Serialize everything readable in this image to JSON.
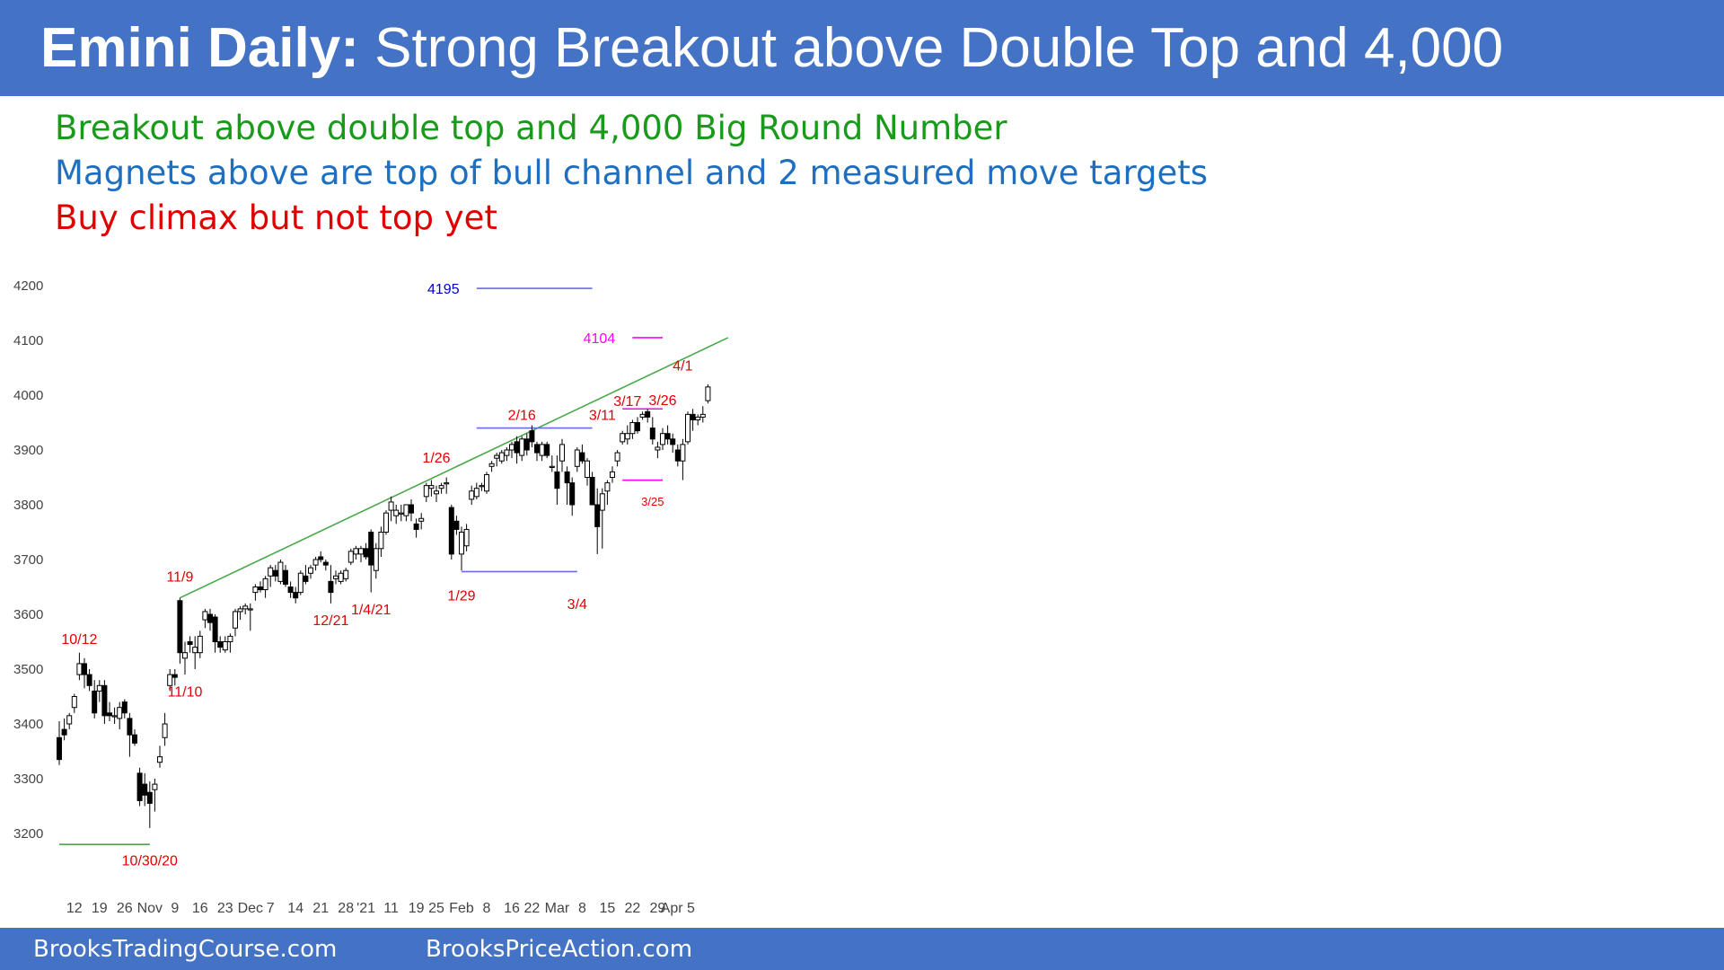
{
  "header": {
    "title_bold": "Emini Daily:",
    "title_rest": "Strong Breakout above Double Top and 4,000"
  },
  "notes": [
    {
      "text": "Breakout above double top and 4,000 Big Round Number",
      "color": "#1a9a1a"
    },
    {
      "text": "Magnets above are top of bull channel and 2 measured move targets",
      "color": "#1f6fc0"
    },
    {
      "text": "Buy climax but not top yet",
      "color": "#e00000"
    }
  ],
  "footer": {
    "link1": "BrooksTradingCourse.com",
    "link2": "BrooksPriceAction.com"
  },
  "colors": {
    "brand": "#4472c4",
    "trendline": "#4aa84a",
    "level_blue": "#6a6ae8",
    "magenta": "#ff00ff",
    "label_red": "#e00000",
    "label_blue": "#0000cc"
  },
  "chart_data": {
    "type": "candlestick",
    "title": "",
    "xlabel": "",
    "ylabel": "",
    "ylim": [
      3150,
      4250
    ],
    "y_ticks": [
      3200,
      3300,
      3400,
      3500,
      3600,
      3700,
      3800,
      3900,
      4000,
      4100,
      4200
    ],
    "x_ticks": [
      {
        "label": "12",
        "bar": 3
      },
      {
        "label": "19",
        "bar": 8
      },
      {
        "label": "26",
        "bar": 13
      },
      {
        "label": "Nov",
        "bar": 18
      },
      {
        "label": "9",
        "bar": 23
      },
      {
        "label": "16",
        "bar": 28
      },
      {
        "label": "23",
        "bar": 33
      },
      {
        "label": "Dec",
        "bar": 38
      },
      {
        "label": "7",
        "bar": 42
      },
      {
        "label": "14",
        "bar": 47
      },
      {
        "label": "21",
        "bar": 52
      },
      {
        "label": "28",
        "bar": 57
      },
      {
        "label": "'21",
        "bar": 61
      },
      {
        "label": "11",
        "bar": 66
      },
      {
        "label": "19",
        "bar": 71
      },
      {
        "label": "25",
        "bar": 75
      },
      {
        "label": "Feb",
        "bar": 80
      },
      {
        "label": "8",
        "bar": 85
      },
      {
        "label": "16",
        "bar": 90
      },
      {
        "label": "22",
        "bar": 94
      },
      {
        "label": "Mar",
        "bar": 99
      },
      {
        "label": "8",
        "bar": 104
      },
      {
        "label": "15",
        "bar": 109
      },
      {
        "label": "22",
        "bar": 114
      },
      {
        "label": "29",
        "bar": 119
      },
      {
        "label": "Apr 5",
        "bar": 123
      }
    ],
    "candles": [
      [
        3375,
        3405,
        3325,
        3335
      ],
      [
        3390,
        3410,
        3370,
        3380
      ],
      [
        3400,
        3420,
        3390,
        3415
      ],
      [
        3430,
        3455,
        3420,
        3450
      ],
      [
        3490,
        3530,
        3480,
        3510
      ],
      [
        3510,
        3520,
        3465,
        3490
      ],
      [
        3490,
        3500,
        3460,
        3470
      ],
      [
        3460,
        3480,
        3410,
        3420
      ],
      [
        3460,
        3480,
        3440,
        3470
      ],
      [
        3470,
        3480,
        3400,
        3415
      ],
      [
        3420,
        3440,
        3405,
        3415
      ],
      [
        3415,
        3430,
        3400,
        3415
      ],
      [
        3410,
        3440,
        3390,
        3430
      ],
      [
        3440,
        3445,
        3410,
        3420
      ],
      [
        3410,
        3420,
        3340,
        3380
      ],
      [
        3380,
        3390,
        3360,
        3365
      ],
      [
        3310,
        3320,
        3250,
        3260
      ],
      [
        3290,
        3310,
        3250,
        3270
      ],
      [
        3275,
        3295,
        3210,
        3255
      ],
      [
        3280,
        3300,
        3240,
        3290
      ],
      [
        3330,
        3360,
        3320,
        3340
      ],
      [
        3375,
        3420,
        3360,
        3400
      ],
      [
        3470,
        3500,
        3460,
        3490
      ],
      [
        3490,
        3500,
        3470,
        3485
      ],
      [
        3625,
        3630,
        3510,
        3530
      ],
      [
        3520,
        3550,
        3490,
        3530
      ],
      [
        3550,
        3560,
        3530,
        3545
      ],
      [
        3530,
        3560,
        3500,
        3540
      ],
      [
        3530,
        3570,
        3520,
        3560
      ],
      [
        3590,
        3610,
        3575,
        3605
      ],
      [
        3600,
        3610,
        3570,
        3585
      ],
      [
        3595,
        3600,
        3530,
        3550
      ],
      [
        3550,
        3560,
        3530,
        3540
      ],
      [
        3535,
        3560,
        3530,
        3550
      ],
      [
        3550,
        3565,
        3530,
        3560
      ],
      [
        3575,
        3610,
        3560,
        3605
      ],
      [
        3605,
        3615,
        3590,
        3610
      ],
      [
        3610,
        3620,
        3600,
        3615
      ],
      [
        3610,
        3620,
        3570,
        3610
      ],
      [
        3640,
        3655,
        3625,
        3650
      ],
      [
        3650,
        3660,
        3640,
        3645
      ],
      [
        3645,
        3670,
        3630,
        3665
      ],
      [
        3670,
        3690,
        3650,
        3685
      ],
      [
        3680,
        3690,
        3660,
        3670
      ],
      [
        3660,
        3700,
        3655,
        3695
      ],
      [
        3680,
        3690,
        3650,
        3655
      ],
      [
        3650,
        3660,
        3630,
        3640
      ],
      [
        3640,
        3650,
        3620,
        3630
      ],
      [
        3640,
        3680,
        3635,
        3675
      ],
      [
        3670,
        3690,
        3655,
        3660
      ],
      [
        3675,
        3690,
        3665,
        3685
      ],
      [
        3690,
        3705,
        3680,
        3700
      ],
      [
        3705,
        3715,
        3695,
        3700
      ],
      [
        3695,
        3700,
        3680,
        3690
      ],
      [
        3660,
        3690,
        3620,
        3640
      ],
      [
        3665,
        3680,
        3655,
        3670
      ],
      [
        3660,
        3680,
        3655,
        3675
      ],
      [
        3665,
        3685,
        3660,
        3680
      ],
      [
        3695,
        3720,
        3690,
        3715
      ],
      [
        3710,
        3725,
        3700,
        3720
      ],
      [
        3710,
        3725,
        3695,
        3720
      ],
      [
        3720,
        3730,
        3700,
        3705
      ],
      [
        3750,
        3755,
        3640,
        3690
      ],
      [
        3680,
        3730,
        3665,
        3720
      ],
      [
        3720,
        3760,
        3705,
        3750
      ],
      [
        3750,
        3790,
        3745,
        3785
      ],
      [
        3790,
        3815,
        3770,
        3805
      ],
      [
        3780,
        3800,
        3765,
        3790
      ],
      [
        3785,
        3800,
        3770,
        3785
      ],
      [
        3780,
        3800,
        3770,
        3800
      ],
      [
        3800,
        3810,
        3770,
        3785
      ],
      [
        3765,
        3775,
        3740,
        3755
      ],
      [
        3770,
        3785,
        3755,
        3775
      ],
      [
        3815,
        3840,
        3805,
        3835
      ],
      [
        3830,
        3845,
        3815,
        3835
      ],
      [
        3820,
        3835,
        3805,
        3825
      ],
      [
        3830,
        3840,
        3820,
        3835
      ],
      [
        3840,
        3850,
        3820,
        3840
      ],
      [
        3795,
        3800,
        3700,
        3710
      ],
      [
        3770,
        3780,
        3745,
        3755
      ],
      [
        3710,
        3760,
        3680,
        3750
      ],
      [
        3725,
        3765,
        3715,
        3755
      ],
      [
        3810,
        3835,
        3800,
        3825
      ],
      [
        3815,
        3840,
        3810,
        3830
      ],
      [
        3835,
        3840,
        3825,
        3835
      ],
      [
        3825,
        3860,
        3820,
        3855
      ],
      [
        3870,
        3880,
        3860,
        3875
      ],
      [
        3885,
        3895,
        3870,
        3890
      ],
      [
        3880,
        3900,
        3875,
        3895
      ],
      [
        3890,
        3905,
        3880,
        3900
      ],
      [
        3900,
        3915,
        3885,
        3910
      ],
      [
        3915,
        3925,
        3875,
        3895
      ],
      [
        3890,
        3925,
        3880,
        3920
      ],
      [
        3920,
        3930,
        3890,
        3900
      ],
      [
        3935,
        3945,
        3905,
        3915
      ],
      [
        3910,
        3915,
        3880,
        3895
      ],
      [
        3890,
        3915,
        3880,
        3910
      ],
      [
        3910,
        3915,
        3885,
        3890
      ],
      [
        3870,
        3890,
        3860,
        3870
      ],
      [
        3860,
        3890,
        3800,
        3830
      ],
      [
        3880,
        3920,
        3860,
        3910
      ],
      [
        3860,
        3870,
        3800,
        3840
      ],
      [
        3840,
        3850,
        3780,
        3800
      ],
      [
        3870,
        3905,
        3860,
        3900
      ],
      [
        3895,
        3910,
        3875,
        3880
      ],
      [
        3850,
        3885,
        3835,
        3880
      ],
      [
        3850,
        3860,
        3800,
        3800
      ],
      [
        3800,
        3830,
        3710,
        3760
      ],
      [
        3790,
        3830,
        3720,
        3820
      ],
      [
        3825,
        3845,
        3800,
        3840
      ],
      [
        3850,
        3870,
        3840,
        3860
      ],
      [
        3880,
        3900,
        3870,
        3895
      ],
      [
        3915,
        3935,
        3910,
        3930
      ],
      [
        3920,
        3945,
        3910,
        3930
      ],
      [
        3930,
        3955,
        3920,
        3950
      ],
      [
        3950,
        3960,
        3930,
        3935
      ],
      [
        3960,
        3970,
        3955,
        3965
      ],
      [
        3970,
        3975,
        3950,
        3960
      ],
      [
        3940,
        3960,
        3910,
        3920
      ],
      [
        3900,
        3915,
        3885,
        3905
      ],
      [
        3910,
        3940,
        3900,
        3930
      ],
      [
        3930,
        3945,
        3910,
        3920
      ],
      [
        3920,
        3930,
        3895,
        3910
      ],
      [
        3900,
        3910,
        3870,
        3880
      ],
      [
        3880,
        3920,
        3845,
        3910
      ],
      [
        3915,
        3970,
        3910,
        3965
      ],
      [
        3965,
        3975,
        3935,
        3955
      ],
      [
        3955,
        3965,
        3945,
        3960
      ],
      [
        3960,
        3980,
        3950,
        3965
      ],
      [
        3990,
        4020,
        3985,
        4015
      ]
    ],
    "reference_lines": [
      {
        "kind": "trendline",
        "from": [
          24,
          3630
        ],
        "to": [
          133,
          4105
        ],
        "color": "#4aa84a"
      },
      {
        "kind": "support",
        "from": [
          0,
          3180
        ],
        "to": [
          18,
          3180
        ],
        "color": "#4aa84a"
      },
      {
        "kind": "level",
        "from": [
          83,
          3940
        ],
        "to": [
          106,
          3940
        ],
        "color": "#6a6ae8"
      },
      {
        "kind": "level",
        "from": [
          80,
          3678
        ],
        "to": [
          103,
          3678
        ],
        "color": "#6a6ae8"
      },
      {
        "kind": "target",
        "from": [
          83,
          4195
        ],
        "to": [
          106,
          4195
        ],
        "color": "#6a6ae8"
      },
      {
        "kind": "target",
        "from": [
          114,
          4105
        ],
        "to": [
          120,
          4105
        ],
        "color": "#ff00ff"
      },
      {
        "kind": "level",
        "from": [
          112,
          3975
        ],
        "to": [
          120,
          3975
        ],
        "color": "#ff00ff"
      },
      {
        "kind": "level",
        "from": [
          112,
          3845
        ],
        "to": [
          120,
          3845
        ],
        "color": "#ff00ff"
      }
    ],
    "annotations": [
      {
        "text": "10/12",
        "bar": 4,
        "y": 3556,
        "color": "#e00000"
      },
      {
        "text": "10/30/20",
        "bar": 18,
        "y": 3152,
        "color": "#e00000"
      },
      {
        "text": "11/9",
        "bar": 24,
        "y": 3670,
        "color": "#e00000"
      },
      {
        "text": "11/10",
        "bar": 25,
        "y": 3460,
        "color": "#e00000"
      },
      {
        "text": "12/21",
        "bar": 54,
        "y": 3590,
        "color": "#e00000"
      },
      {
        "text": "1/4/21",
        "bar": 62,
        "y": 3610,
        "color": "#e00000"
      },
      {
        "text": "1/26",
        "bar": 75,
        "y": 3887,
        "color": "#e00000"
      },
      {
        "text": "1/29",
        "bar": 80,
        "y": 3635,
        "color": "#e00000"
      },
      {
        "text": "2/16",
        "bar": 92,
        "y": 3965,
        "color": "#e00000"
      },
      {
        "text": "3/4",
        "bar": 103,
        "y": 3620,
        "color": "#e00000"
      },
      {
        "text": "3/11",
        "bar": 108,
        "y": 3965,
        "color": "#e00000"
      },
      {
        "text": "3/17",
        "bar": 113,
        "y": 3990,
        "color": "#e00000"
      },
      {
        "text": "3/25",
        "bar": 118,
        "y": 3808,
        "color": "#e00000",
        "size": "small"
      },
      {
        "text": "3/26",
        "bar": 120,
        "y": 3992,
        "color": "#e00000"
      },
      {
        "text": "4/1",
        "bar": 124,
        "y": 4055,
        "color": "#e00000"
      },
      {
        "text": "4195",
        "bar": 81,
        "y": 4195,
        "color": "#0000cc",
        "anchor": "end"
      },
      {
        "text": "4104",
        "bar": 112,
        "y": 4105,
        "color": "#ff00ff",
        "anchor": "end"
      }
    ]
  }
}
